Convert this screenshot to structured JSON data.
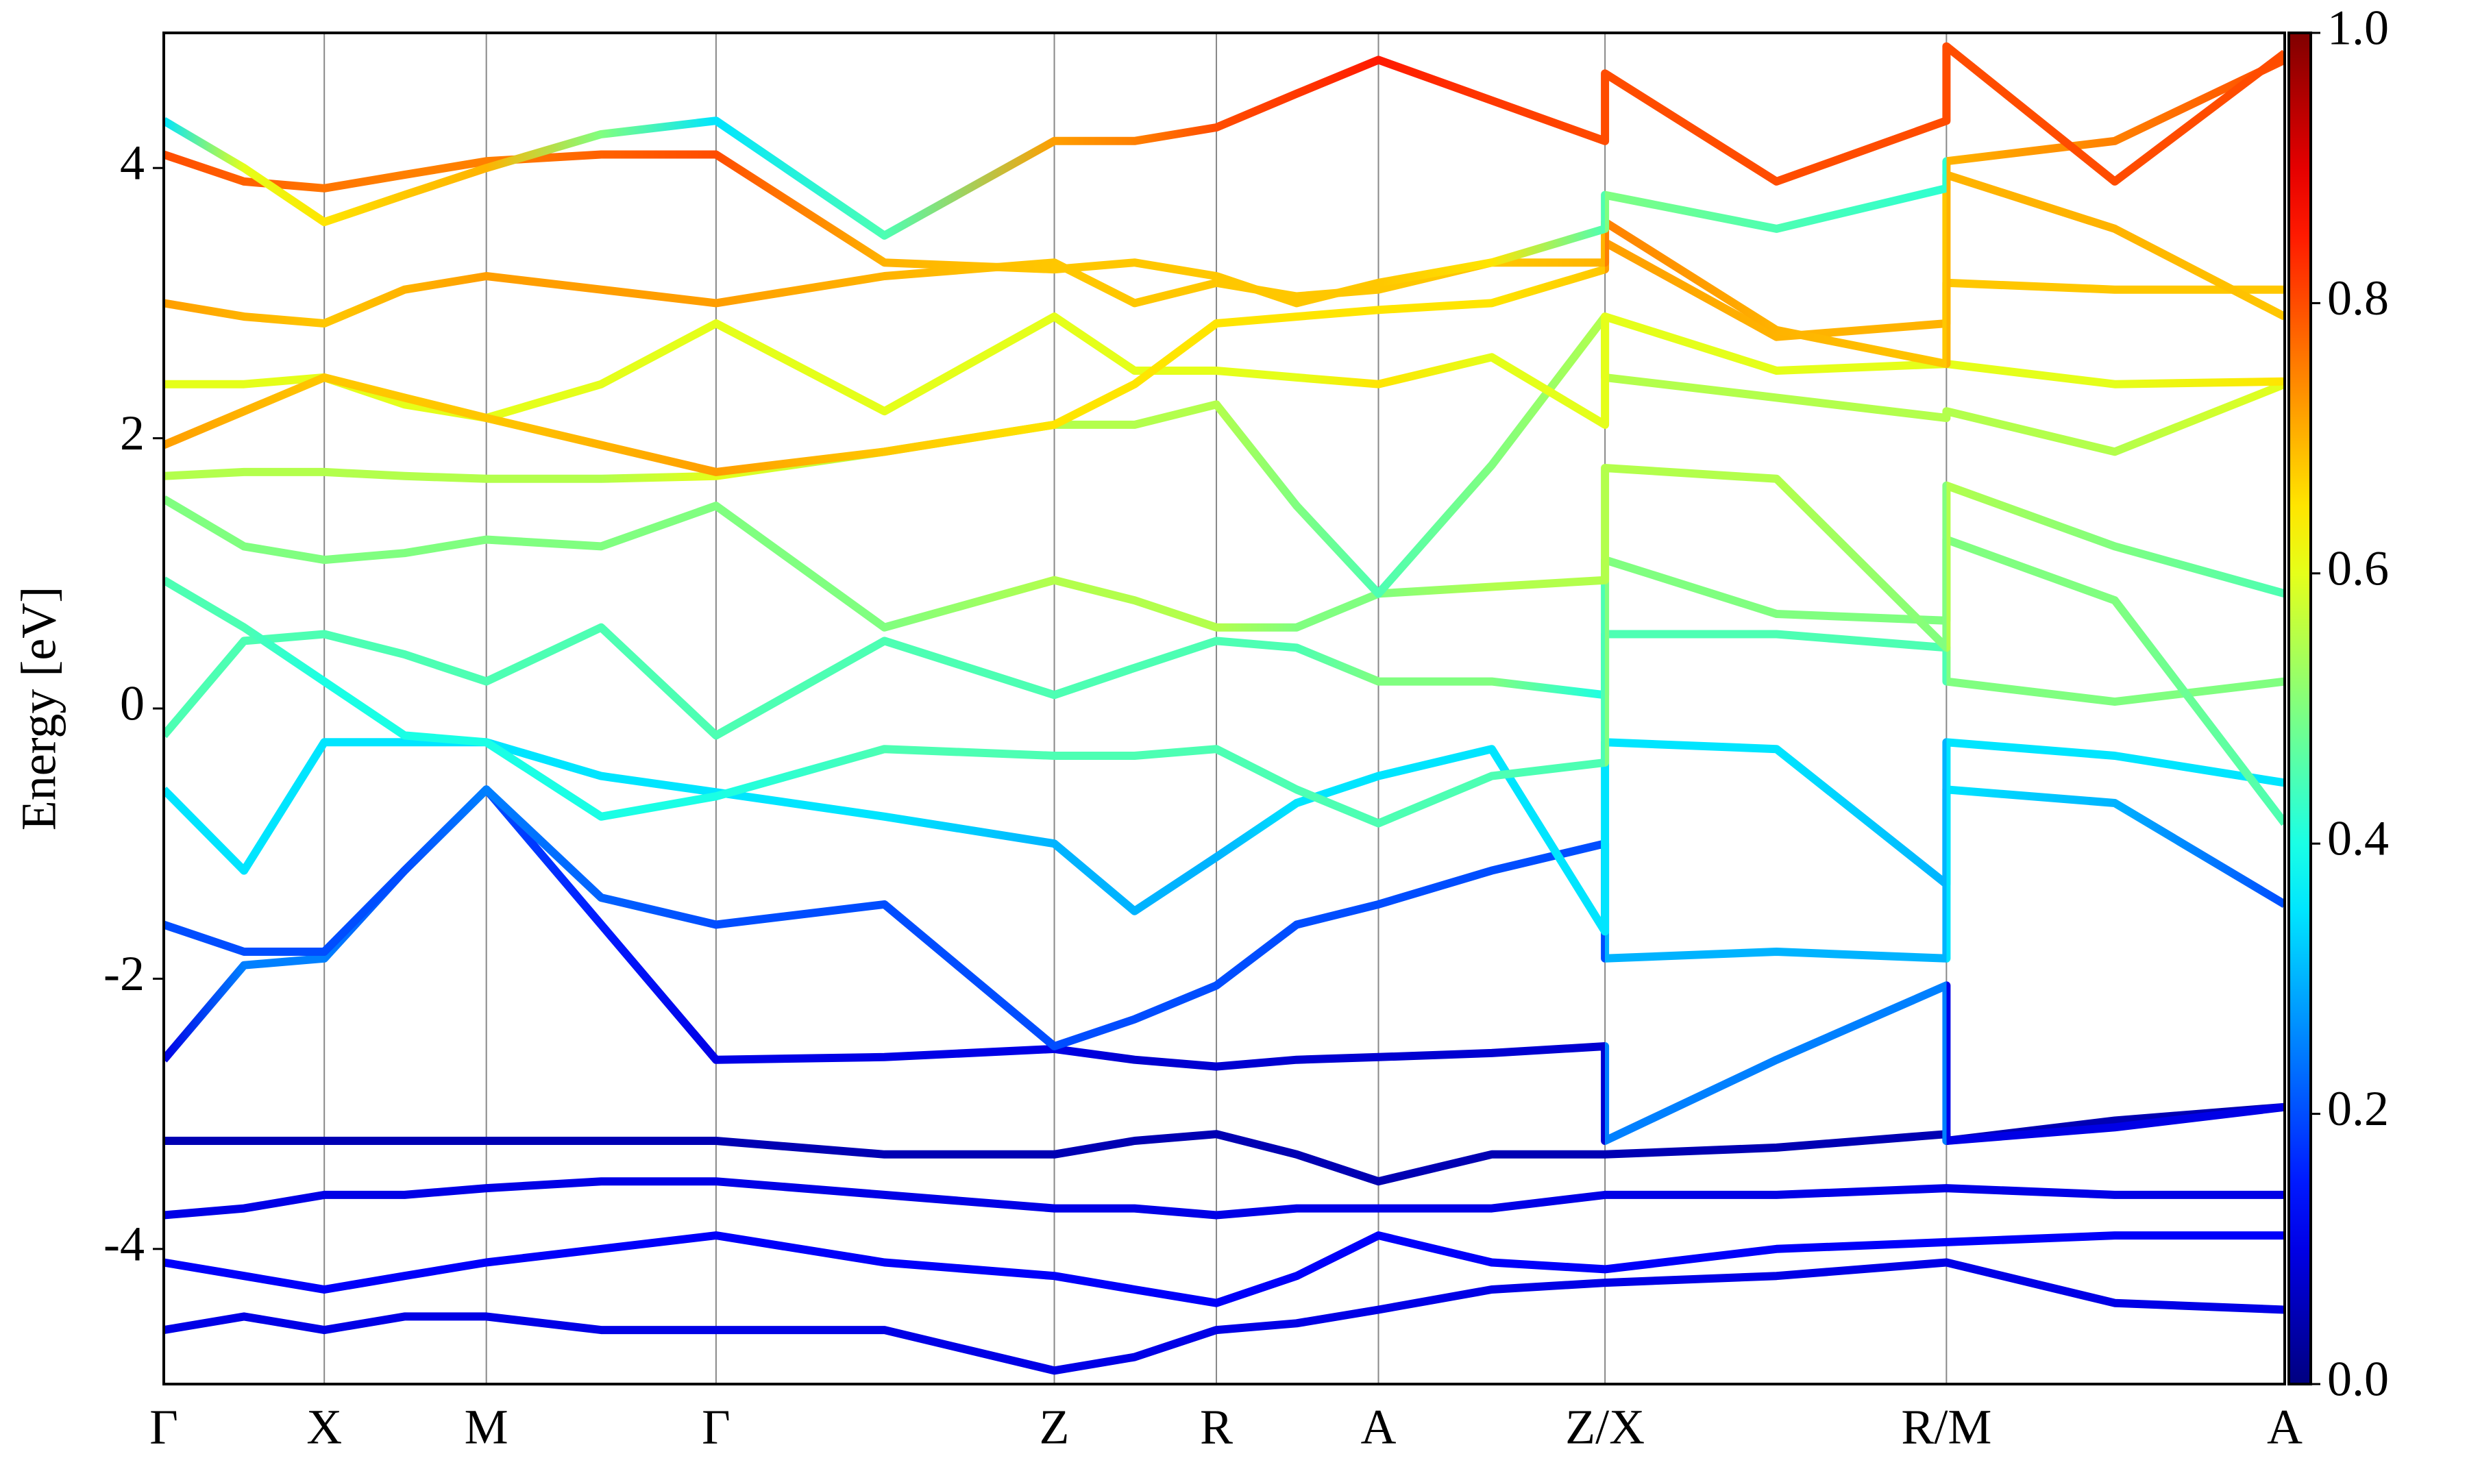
{
  "chart_data": {
    "type": "line",
    "ylabel": "Energy [eV]",
    "colormap": "jet",
    "x": [
      0,
      0.51,
      1.02,
      1.53,
      2.05,
      2.78,
      3.51,
      4.58,
      5.66,
      6.17,
      6.69,
      7.2,
      7.72,
      8.44,
      9.16,
      9.16,
      10.25,
      11.33,
      11.33,
      12.4,
      13.48
    ],
    "xlim": [
      0,
      13.48
    ],
    "xticks": [
      {
        "value": 0,
        "label": "Γ"
      },
      {
        "value": 1.02,
        "label": "X"
      },
      {
        "value": 2.05,
        "label": "M"
      },
      {
        "value": 3.51,
        "label": "Γ"
      },
      {
        "value": 5.66,
        "label": "Z"
      },
      {
        "value": 6.69,
        "label": "R"
      },
      {
        "value": 7.72,
        "label": "A"
      },
      {
        "value": 9.16,
        "label": "Z/X"
      },
      {
        "value": 11.33,
        "label": "R/M"
      },
      {
        "value": 13.48,
        "label": "A"
      }
    ],
    "ylim": [
      -5,
      5
    ],
    "yticks": [
      -4,
      -2,
      0,
      2,
      4
    ],
    "grid": true,
    "colorbar": {
      "lim": [
        0,
        1
      ],
      "ticks": [
        {
          "value": 0,
          "label": "0.0"
        },
        {
          "value": 0.2,
          "label": "0.2"
        },
        {
          "value": 0.4,
          "label": "0.4"
        },
        {
          "value": 0.6,
          "label": "0.6"
        },
        {
          "value": 0.8,
          "label": "0.8"
        },
        {
          "value": 1,
          "label": "1.0"
        }
      ]
    },
    "series": [
      {
        "values": [
          -4.6,
          -4.5,
          -4.6,
          -4.5,
          -4.5,
          -4.6,
          -4.6,
          -4.6,
          -4.9,
          -4.8,
          -4.6,
          -4.55,
          -4.45,
          -4.3,
          -4.25,
          -4.25,
          -4.2,
          -4.1,
          -4.1,
          -4.4,
          -4.45
        ],
        "weights": [
          0.1,
          0.1,
          0.1,
          0.1,
          0.1,
          0.1,
          0.1,
          0.1,
          0.1,
          0.1,
          0.1,
          0.1,
          0.1,
          0.1,
          0.1,
          0.1,
          0.1,
          0.1,
          0.1,
          0.1,
          0.1
        ]
      },
      {
        "values": [
          -4.1,
          -4.2,
          -4.3,
          -4.2,
          -4.1,
          -4.0,
          -3.9,
          -4.1,
          -4.2,
          -4.3,
          -4.4,
          -4.2,
          -3.9,
          -4.1,
          -4.15,
          -4.15,
          -4.0,
          -3.95,
          -3.95,
          -3.9,
          -3.9
        ],
        "weights": [
          0.12,
          0.12,
          0.12,
          0.12,
          0.12,
          0.12,
          0.12,
          0.12,
          0.12,
          0.12,
          0.12,
          0.12,
          0.12,
          0.12,
          0.12,
          0.12,
          0.12,
          0.12,
          0.12,
          0.12,
          0.12
        ]
      },
      {
        "values": [
          -3.75,
          -3.7,
          -3.6,
          -3.6,
          -3.55,
          -3.5,
          -3.5,
          -3.6,
          -3.7,
          -3.7,
          -3.75,
          -3.7,
          -3.7,
          -3.7,
          -3.6,
          -3.6,
          -3.6,
          -3.55,
          -3.55,
          -3.6,
          -3.6
        ],
        "weights": [
          0.1,
          0.1,
          0.1,
          0.1,
          0.1,
          0.1,
          0.1,
          0.1,
          0.1,
          0.1,
          0.1,
          0.1,
          0.1,
          0.1,
          0.1,
          0.1,
          0.1,
          0.1,
          0.1,
          0.1,
          0.1
        ]
      },
      {
        "values": [
          -3.2,
          -3.2,
          -3.2,
          -3.2,
          -3.2,
          -3.2,
          -3.2,
          -3.3,
          -3.3,
          -3.2,
          -3.15,
          -3.3,
          -3.5,
          -3.3,
          -3.3,
          -3.3,
          -3.25,
          -3.15,
          -3.2,
          -3.05,
          -2.95
        ],
        "weights": [
          0.05,
          0.05,
          0.05,
          0.05,
          0.05,
          0.05,
          0.05,
          0.05,
          0.05,
          0.05,
          0.05,
          0.05,
          0.05,
          0.05,
          0.05,
          0.05,
          0.05,
          0.05,
          0.05,
          0.05,
          0.05
        ]
      },
      {
        "values": [
          -2.6,
          -1.9,
          -1.85,
          -1.2,
          -0.6,
          -1.6,
          -2.6,
          -2.58,
          -2.52,
          -2.6,
          -2.65,
          -2.6,
          -2.58,
          -2.55,
          -2.5,
          -3.2,
          -2.6,
          -2.05,
          -3.2,
          -3.1,
          -2.95
        ],
        "weights": [
          0.1,
          0.25,
          0.25,
          0.2,
          0.2,
          0.15,
          0.1,
          0.1,
          0.1,
          0.08,
          0.08,
          0.08,
          0.08,
          0.08,
          0.08,
          0.25,
          0.25,
          0.25,
          0.1,
          0.1,
          0.1
        ]
      },
      {
        "values": [
          -1.6,
          -1.8,
          -1.8,
          -1.2,
          -0.6,
          -1.4,
          -1.6,
          -1.45,
          -2.5,
          -2.3,
          -2.05,
          -1.6,
          -1.45,
          -1.2,
          -1.0,
          -1.85,
          -1.8,
          -1.85,
          -0.6,
          -0.7,
          -1.45
        ],
        "weights": [
          0.2,
          0.2,
          0.2,
          0.2,
          0.25,
          0.22,
          0.2,
          0.2,
          0.2,
          0.2,
          0.2,
          0.2,
          0.2,
          0.2,
          0.2,
          0.3,
          0.3,
          0.3,
          0.35,
          0.3,
          0.2
        ]
      },
      {
        "values": [
          -0.6,
          -1.2,
          -0.25,
          -0.25,
          -0.25,
          -0.5,
          -0.62,
          -0.8,
          -1.0,
          -1.5,
          -1.1,
          -0.7,
          -0.5,
          -0.3,
          -1.65,
          -0.25,
          -0.3,
          -1.3,
          -0.25,
          -0.35,
          -0.55
        ],
        "weights": [
          0.35,
          0.35,
          0.35,
          0.35,
          0.35,
          0.35,
          0.35,
          0.35,
          0.3,
          0.3,
          0.3,
          0.35,
          0.35,
          0.35,
          0.35,
          0.35,
          0.35,
          0.3,
          0.35,
          0.35,
          0.35
        ]
      },
      {
        "values": [
          -0.2,
          0.5,
          0.55,
          0.4,
          0.2,
          0.6,
          -0.2,
          0.5,
          0.1,
          0.3,
          0.5,
          0.45,
          0.2,
          0.2,
          0.1,
          0.55,
          0.55,
          0.45,
          0.2,
          0.05,
          0.2
        ],
        "weights": [
          0.45,
          0.45,
          0.45,
          0.45,
          0.45,
          0.45,
          0.45,
          0.45,
          0.45,
          0.45,
          0.45,
          0.45,
          0.5,
          0.5,
          0.4,
          0.45,
          0.45,
          0.45,
          0.5,
          0.5,
          0.5
        ]
      },
      {
        "values": [
          0.95,
          0.6,
          0.2,
          -0.2,
          -0.25,
          -0.8,
          -0.65,
          -0.3,
          -0.35,
          -0.35,
          -0.3,
          -0.6,
          -0.85,
          -0.5,
          -0.4,
          1.1,
          0.7,
          0.65,
          1.25,
          0.8,
          -0.85
        ],
        "weights": [
          0.45,
          0.45,
          0.4,
          0.4,
          0.4,
          0.4,
          0.4,
          0.45,
          0.45,
          0.45,
          0.45,
          0.45,
          0.45,
          0.45,
          0.45,
          0.5,
          0.5,
          0.5,
          0.5,
          0.5,
          0.45
        ]
      },
      {
        "values": [
          1.55,
          1.2,
          1.1,
          1.15,
          1.25,
          1.2,
          1.5,
          0.6,
          0.95,
          0.8,
          0.6,
          0.6,
          0.85,
          0.9,
          0.95,
          1.78,
          1.7,
          0.45,
          1.65,
          1.2,
          0.85
        ],
        "weights": [
          0.5,
          0.5,
          0.5,
          0.5,
          0.5,
          0.5,
          0.5,
          0.5,
          0.55,
          0.55,
          0.55,
          0.5,
          0.5,
          0.55,
          0.55,
          0.55,
          0.55,
          0.5,
          0.55,
          0.5,
          0.45
        ]
      },
      {
        "values": [
          1.72,
          1.75,
          1.75,
          1.72,
          1.7,
          1.7,
          1.72,
          1.9,
          2.1,
          2.1,
          2.25,
          1.5,
          0.85,
          1.8,
          2.9,
          2.45,
          2.3,
          2.15,
          2.2,
          1.9,
          2.4
        ],
        "weights": [
          0.55,
          0.55,
          0.55,
          0.55,
          0.55,
          0.55,
          0.6,
          0.55,
          0.55,
          0.55,
          0.55,
          0.5,
          0.45,
          0.5,
          0.55,
          0.55,
          0.55,
          0.55,
          0.55,
          0.55,
          0.6
        ]
      },
      {
        "values": [
          2.4,
          2.4,
          2.45,
          2.25,
          2.15,
          2.4,
          2.85,
          2.2,
          2.9,
          2.5,
          2.5,
          2.45,
          2.4,
          2.6,
          2.1,
          2.9,
          2.5,
          2.55,
          2.55,
          2.4,
          2.42
        ],
        "weights": [
          0.6,
          0.6,
          0.6,
          0.6,
          0.6,
          0.6,
          0.6,
          0.6,
          0.6,
          0.6,
          0.6,
          0.6,
          0.65,
          0.6,
          0.6,
          0.6,
          0.6,
          0.6,
          0.6,
          0.6,
          0.65
        ]
      },
      {
        "values": [
          1.95,
          2.2,
          2.45,
          2.3,
          2.15,
          1.95,
          1.75,
          1.9,
          2.1,
          2.4,
          2.85,
          2.9,
          2.95,
          3.0,
          3.25,
          3.45,
          2.75,
          2.85,
          3.15,
          3.1,
          3.1
        ],
        "weights": [
          0.72,
          0.7,
          0.68,
          0.68,
          0.68,
          0.7,
          0.72,
          0.68,
          0.65,
          0.65,
          0.65,
          0.65,
          0.65,
          0.65,
          0.68,
          0.72,
          0.7,
          0.7,
          0.68,
          0.68,
          0.68
        ]
      },
      {
        "values": [
          3.0,
          2.9,
          2.85,
          3.1,
          3.2,
          3.1,
          3.0,
          3.2,
          3.3,
          3.0,
          3.15,
          3.05,
          3.1,
          3.3,
          3.3,
          3.6,
          2.8,
          2.55,
          3.95,
          3.55,
          2.9
        ],
        "weights": [
          0.72,
          0.7,
          0.68,
          0.7,
          0.72,
          0.72,
          0.72,
          0.7,
          0.68,
          0.68,
          0.68,
          0.68,
          0.68,
          0.68,
          0.7,
          0.75,
          0.7,
          0.68,
          0.7,
          0.7,
          0.68
        ]
      },
      {
        "values": [
          4.1,
          3.9,
          3.85,
          3.95,
          4.05,
          4.1,
          4.1,
          3.3,
          3.25,
          3.3,
          3.2,
          3.0,
          3.15,
          3.3,
          3.55,
          3.8,
          3.55,
          3.85,
          4.05,
          4.2,
          4.8
        ],
        "weights": [
          0.8,
          0.78,
          0.76,
          0.75,
          0.75,
          0.78,
          0.8,
          0.7,
          0.68,
          0.68,
          0.68,
          0.68,
          0.68,
          0.65,
          0.45,
          0.5,
          0.45,
          0.42,
          0.7,
          0.75,
          0.8
        ]
      },
      {
        "values": [
          4.35,
          4.0,
          3.6,
          3.8,
          4.0,
          4.25,
          4.35,
          3.5,
          4.2,
          4.2,
          4.3,
          4.55,
          4.8,
          4.5,
          4.2,
          4.7,
          3.9,
          4.35,
          4.9,
          3.9,
          4.85
        ],
        "weights": [
          0.35,
          0.6,
          0.65,
          0.68,
          0.7,
          0.5,
          0.35,
          0.45,
          0.72,
          0.75,
          0.8,
          0.82,
          0.85,
          0.82,
          0.8,
          0.8,
          0.8,
          0.8,
          0.8,
          0.8,
          0.8
        ]
      }
    ]
  }
}
